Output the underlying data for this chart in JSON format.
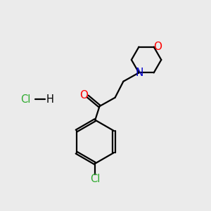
{
  "background_color": "#ebebeb",
  "bond_color": "#000000",
  "figsize": [
    3.0,
    3.0
  ],
  "dpi": 100,
  "xlim": [
    0,
    10
  ],
  "ylim": [
    0,
    10
  ],
  "linewidth": 1.6
}
